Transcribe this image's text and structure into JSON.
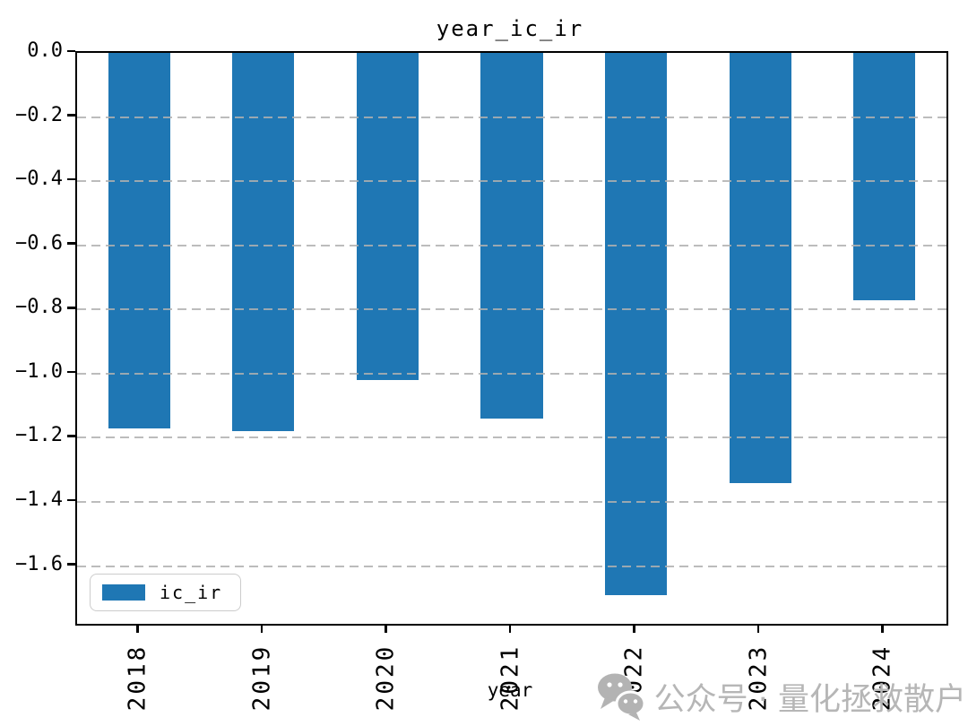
{
  "chart_data": {
    "type": "bar",
    "title": "year_ic_ir",
    "xlabel": "year",
    "ylabel": "",
    "categories": [
      "2018",
      "2019",
      "2020",
      "2021",
      "2022",
      "2023",
      "2024"
    ],
    "series": [
      {
        "name": "ic_ir",
        "values": [
          -1.17,
          -1.18,
          -1.02,
          -1.14,
          -1.69,
          -1.34,
          -0.77
        ]
      }
    ],
    "ylim": [
      -1.78,
      0.0
    ],
    "yticks": [
      0.0,
      -0.2,
      -0.4,
      -0.6,
      -0.8,
      -1.0,
      -1.2,
      -1.4,
      -1.6
    ],
    "ytick_labels": [
      "0.0",
      "−0.2",
      "−0.4",
      "−0.6",
      "−0.8",
      "−1.0",
      "−1.2",
      "−1.4",
      "−1.6"
    ],
    "grid": {
      "axis": "y",
      "style": "dashed",
      "color": "#b0b0b0"
    },
    "legend": {
      "label": "ic_ir",
      "position": "lower-left"
    },
    "colors": {
      "bar": "#1f77b4",
      "spine": "#000000",
      "grid": "#b0b0b0",
      "watermark": "#b6b6b6"
    },
    "bar_width_fraction": 0.5
  },
  "watermark": {
    "text": "公众号 · 量化拯救散户",
    "icon": "wechat-icon"
  }
}
